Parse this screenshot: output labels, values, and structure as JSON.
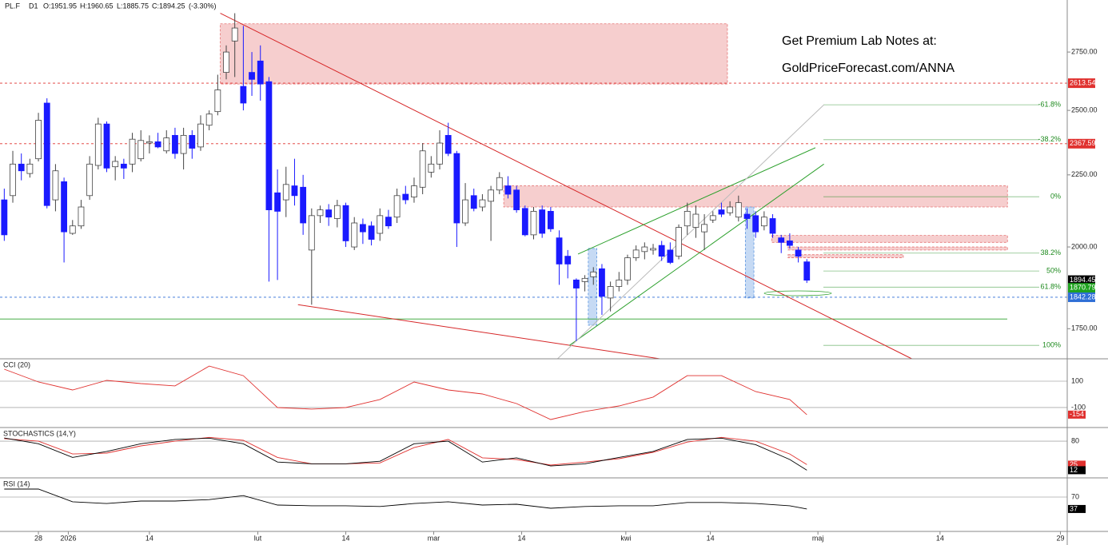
{
  "chart_data": {
    "type": "candlestick",
    "header": [
      "PL.F",
      "D1",
      "O:1951.95",
      "H:1960.65",
      "L:1885.75",
      "C:1894.25",
      "(-3.30%)"
    ],
    "annotations": [
      "Get Premium Lab Notes at:",
      "GoldPriceForecast.com/ANNA"
    ],
    "log_scale": true,
    "ylim": [
      1666,
      2994
    ],
    "yticks": [
      {
        "value": 2750,
        "label": "2750.00"
      },
      {
        "value": 2500,
        "label": "2500.00"
      },
      {
        "value": 2250,
        "label": "2250.00"
      },
      {
        "value": 2000,
        "label": "2000.00"
      },
      {
        "value": 1750,
        "label": "1750.00"
      }
    ],
    "xlim": [
      -0.5,
      124.5
    ],
    "xticks": [
      {
        "value": 4.0,
        "label": "28"
      },
      {
        "value": 7.5,
        "label": "2026"
      },
      {
        "value": 17.0,
        "label": "14"
      },
      {
        "value": 29.7,
        "label": "lut"
      },
      {
        "value": 40.0,
        "label": "14"
      },
      {
        "value": 50.3,
        "label": "mar"
      },
      {
        "value": 60.6,
        "label": "14"
      },
      {
        "value": 72.8,
        "label": "kwi"
      },
      {
        "value": 82.7,
        "label": "14"
      },
      {
        "value": 95.3,
        "label": "maj"
      },
      {
        "value": 109.6,
        "label": "14"
      },
      {
        "value": 123.7,
        "label": "29"
      }
    ],
    "up_color": "#ffffff",
    "down_color": "#1a1aff",
    "candles": [
      [
        2160,
        2200,
        2020,
        2040
      ],
      [
        2175,
        2340,
        2150,
        2290
      ],
      [
        2290,
        2330,
        2230,
        2265
      ],
      [
        2255,
        2310,
        2240,
        2290
      ],
      [
        2310,
        2490,
        2300,
        2460
      ],
      [
        2530,
        2550,
        2130,
        2140
      ],
      [
        2160,
        2290,
        2120,
        2265
      ],
      [
        2225,
        2240,
        1950,
        2050
      ],
      [
        2045,
        2090,
        2040,
        2070
      ],
      [
        2070,
        2160,
        2060,
        2135
      ],
      [
        2175,
        2320,
        2160,
        2290
      ],
      [
        2285,
        2470,
        2270,
        2445
      ],
      [
        2445,
        2455,
        2260,
        2275
      ],
      [
        2280,
        2320,
        2230,
        2300
      ],
      [
        2290,
        2310,
        2235,
        2275
      ],
      [
        2290,
        2410,
        2260,
        2385
      ],
      [
        2310,
        2420,
        2300,
        2380
      ],
      [
        2370,
        2400,
        2330,
        2375
      ],
      [
        2375,
        2410,
        2350,
        2355
      ],
      [
        2340,
        2420,
        2330,
        2390
      ],
      [
        2400,
        2430,
        2310,
        2330
      ],
      [
        2330,
        2430,
        2270,
        2400
      ],
      [
        2400,
        2420,
        2310,
        2350
      ],
      [
        2355,
        2480,
        2340,
        2445
      ],
      [
        2440,
        2500,
        2420,
        2485
      ],
      [
        2495,
        2650,
        2480,
        2585
      ],
      [
        2660,
        2780,
        2630,
        2750
      ],
      [
        2800,
        2930,
        2640,
        2860
      ],
      [
        2600,
        2870,
        2500,
        2530
      ],
      [
        2660,
        2750,
        2560,
        2630
      ],
      [
        2710,
        2780,
        2540,
        2610
      ],
      [
        2620,
        2640,
        1890,
        2125
      ],
      [
        2185,
        2270,
        1895,
        2120
      ],
      [
        2160,
        2280,
        2100,
        2215
      ],
      [
        2210,
        2310,
        2140,
        2175
      ],
      [
        2205,
        2250,
        2040,
        2080
      ],
      [
        1990,
        2130,
        1820,
        2105
      ],
      [
        2105,
        2140,
        2080,
        2125
      ],
      [
        2125,
        2145,
        2070,
        2100
      ],
      [
        2095,
        2160,
        2065,
        2140
      ],
      [
        2140,
        2150,
        2000,
        2020
      ],
      [
        2000,
        2100,
        1990,
        2080
      ],
      [
        2075,
        2095,
        2010,
        2050
      ],
      [
        2070,
        2085,
        2005,
        2025
      ],
      [
        2045,
        2130,
        2020,
        2105
      ],
      [
        2100,
        2125,
        2060,
        2070
      ],
      [
        2100,
        2200,
        2080,
        2175
      ],
      [
        2180,
        2210,
        2145,
        2160
      ],
      [
        2170,
        2240,
        2150,
        2210
      ],
      [
        2205,
        2370,
        2180,
        2340
      ],
      [
        2260,
        2320,
        2240,
        2290
      ],
      [
        2290,
        2420,
        2270,
        2370
      ],
      [
        2400,
        2450,
        2320,
        2330
      ],
      [
        2330,
        2340,
        2000,
        2080
      ],
      [
        2080,
        2220,
        2070,
        2160
      ],
      [
        2175,
        2200,
        2120,
        2130
      ],
      [
        2135,
        2180,
        2120,
        2160
      ],
      [
        2155,
        2210,
        2020,
        2195
      ],
      [
        2195,
        2260,
        2180,
        2240
      ],
      [
        2210,
        2245,
        2165,
        2180
      ],
      [
        2195,
        2210,
        2115,
        2125
      ],
      [
        2130,
        2140,
        2035,
        2040
      ],
      [
        2040,
        2135,
        2025,
        2120
      ],
      [
        2125,
        2140,
        2030,
        2045
      ],
      [
        2120,
        2135,
        2050,
        2060
      ],
      [
        2030,
        2055,
        1880,
        1945
      ],
      [
        1970,
        1990,
        1900,
        1945
      ],
      [
        1895,
        1900,
        1715,
        1870
      ],
      [
        1890,
        1910,
        1860,
        1900
      ],
      [
        1905,
        1935,
        1880,
        1920
      ],
      [
        1930,
        1945,
        1790,
        1845
      ],
      [
        1840,
        1890,
        1800,
        1875
      ],
      [
        1875,
        1920,
        1860,
        1895
      ],
      [
        1895,
        1975,
        1880,
        1965
      ],
      [
        1965,
        2005,
        1955,
        1990
      ],
      [
        1985,
        2015,
        1960,
        2000
      ],
      [
        1990,
        2010,
        1975,
        1995
      ],
      [
        2005,
        2020,
        1955,
        1970
      ],
      [
        1990,
        2015,
        1945,
        1950
      ],
      [
        1970,
        2075,
        1960,
        2065
      ],
      [
        2070,
        2150,
        2040,
        2120
      ],
      [
        2065,
        2140,
        2030,
        2110
      ],
      [
        2050,
        2110,
        1990,
        2075
      ],
      [
        2090,
        2120,
        2080,
        2105
      ],
      [
        2125,
        2150,
        2100,
        2110
      ],
      [
        2115,
        2155,
        2105,
        2135
      ],
      [
        2100,
        2175,
        2085,
        2150
      ],
      [
        2110,
        2130,
        2060,
        2095
      ],
      [
        2105,
        2120,
        2030,
        2050
      ],
      [
        2070,
        2120,
        2055,
        2100
      ],
      [
        2095,
        2110,
        2030,
        2045
      ],
      [
        2030,
        2040,
        1980,
        2015
      ],
      [
        2020,
        2045,
        1995,
        2005
      ],
      [
        1990,
        2000,
        1950,
        1970
      ],
      [
        1951.95,
        1960.65,
        1885.75,
        1894.25
      ]
    ],
    "levels": [
      {
        "value": 2613.54,
        "color": "#e0312f",
        "line": true,
        "dashed": true,
        "badge": true
      },
      {
        "value": 2367.59,
        "color": "#e0312f",
        "line": true,
        "dashed": true,
        "badge": true
      },
      {
        "value": 1894.45,
        "color": "#000000",
        "line": false,
        "dashed": false,
        "badge": true
      },
      {
        "value": 1870.79,
        "color": "#1fa31f",
        "line": false,
        "dashed": false,
        "badge": true
      },
      {
        "value": 1842.28,
        "color": "#2f6fd6",
        "line": true,
        "dashed": true,
        "badge": true
      },
      {
        "value": 1778,
        "color": "#2ca02c",
        "line": true,
        "dashed": false,
        "badge": false
      }
    ],
    "fib_color": "#1e8a1e",
    "fib": [
      {
        "label": "-61.8%",
        "value": 2523
      },
      {
        "label": "-38.2%",
        "value": 2383
      },
      {
        "label": "0%",
        "value": 2171
      },
      {
        "label": "38.2%",
        "value": 1980
      },
      {
        "label": "50%",
        "value": 1923
      },
      {
        "label": "61.8%",
        "value": 1873
      },
      {
        "label": "100%",
        "value": 1703
      }
    ],
    "zones": [
      {
        "x": [
          25.3,
          84.7
        ],
        "y": [
          2610,
          2880
        ],
        "color": "#e57373"
      },
      {
        "x": [
          58.5,
          117.5
        ],
        "y": [
          2135,
          2210
        ],
        "color": "#e57373"
      },
      {
        "x": [
          89.9,
          117.5
        ],
        "y": [
          2015,
          2038
        ],
        "color": "#e57373"
      },
      {
        "x": [
          91.8,
          117.5
        ],
        "y": [
          1990,
          2000
        ],
        "color": "#e57373"
      },
      {
        "x": [
          91.8,
          105.3
        ],
        "y": [
          1965,
          1975
        ],
        "color": "#e57373"
      },
      {
        "x": [
          68.4,
          69.4
        ],
        "y": [
          1760,
          1995
        ],
        "color": "#5b95e0"
      },
      {
        "x": [
          86.8,
          87.8
        ],
        "y": [
          1840,
          2135
        ],
        "color": "#5b95e0"
      }
    ],
    "trendlines": [
      {
        "points": [
          [
            25.3,
            2930
          ],
          [
            106.3,
            1666
          ]
        ],
        "color": "#d62728"
      },
      {
        "points": [
          [
            34.4,
            1820
          ],
          [
            76.8,
            1666
          ]
        ],
        "color": "#d62728"
      },
      {
        "points": [
          [
            67.2,
            1977
          ],
          [
            95.0,
            2352
          ]
        ],
        "color": "#2ca02c"
      },
      {
        "points": [
          [
            66.2,
            1703
          ],
          [
            96.0,
            2290
          ]
        ],
        "color": "#2ca02c"
      },
      {
        "points": [
          [
            64.8,
            1666
          ],
          [
            96.0,
            2523
          ]
        ],
        "color": "#bbbbbb"
      }
    ],
    "indicators": [
      {
        "title": "CCI (20)",
        "ylim": [
          -252,
          270
        ],
        "yticks": [
          100,
          -100
        ],
        "x": [
          0,
          4,
          8,
          12,
          16,
          20,
          24,
          28,
          32,
          36,
          40,
          44,
          48,
          52,
          56,
          60,
          64,
          68,
          72,
          76,
          80,
          84,
          88,
          92,
          94
        ],
        "series": [
          {
            "color": "#e0312f",
            "values": [
              191,
              94,
              33,
              106,
              82,
              64,
              215,
              142,
              -100,
              -112,
              -100,
              -39,
              94,
              33,
              3,
              -70,
              -191,
              -130,
              -88,
              -21,
              142,
              142,
              21,
              -39,
              -154
            ]
          }
        ]
      },
      {
        "title": "STOCHASTICS (14,Y)",
        "ylim": [
          -6,
          112
        ],
        "yticks": [
          80
        ],
        "x": [
          0,
          4,
          8,
          12,
          16,
          20,
          24,
          28,
          32,
          36,
          40,
          44,
          48,
          52,
          56,
          60,
          64,
          68,
          72,
          76,
          80,
          84,
          88,
          92,
          94
        ],
        "series": [
          {
            "color": "#e0312f",
            "values": [
              86,
              80,
              50,
              52,
              69,
              80,
              89,
              82,
              42,
              27,
              27,
              29,
              65,
              84,
              41,
              37,
              24,
              31,
              39,
              54,
              78,
              89,
              80,
              50,
              25
            ]
          },
          {
            "color": "#000000",
            "values": [
              87.5,
              74,
              42,
              56,
              74,
              84,
              87,
              74,
              31,
              27,
              27,
              33,
              74,
              80,
              31,
              41,
              22,
              27,
              42,
              56,
              84,
              87,
              72,
              37,
              12
            ]
          }
        ]
      },
      {
        "title": "RSI (14)",
        "ylim": [
          -25,
          123
        ],
        "yticks": [
          70
        ],
        "x": [
          0,
          4,
          8,
          12,
          16,
          20,
          24,
          28,
          32,
          36,
          40,
          44,
          48,
          52,
          56,
          60,
          64,
          68,
          72,
          76,
          80,
          84,
          88,
          92,
          94
        ],
        "series": [
          {
            "color": "#000000",
            "values": [
              92,
              92,
              57,
              52,
              59,
              59,
              63,
              74,
              48,
              46,
              46,
              44,
              52,
              57,
              48,
              50,
              39,
              44,
              46,
              46,
              55,
              55,
              52,
              46,
              37
            ]
          }
        ]
      }
    ]
  }
}
